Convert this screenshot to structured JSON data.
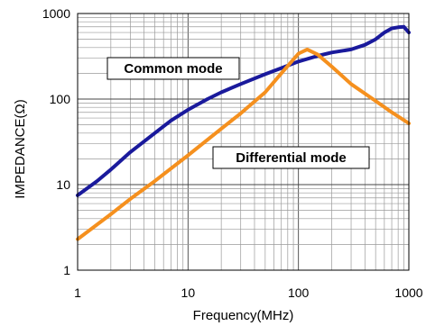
{
  "chart_data": {
    "type": "line",
    "title": "",
    "xlabel": "Frequency(MHz)",
    "ylabel": "IMPEDANCE(Ω)",
    "xscale": "log",
    "yscale": "log",
    "xlim": [
      1,
      1000
    ],
    "ylim": [
      1,
      1000
    ],
    "grid": true,
    "x_ticks": [
      "1",
      "10",
      "100",
      "1000"
    ],
    "y_ticks": [
      "1",
      "10",
      "100",
      "1000"
    ],
    "series": [
      {
        "name": "Common mode",
        "color": "#1a1a9c",
        "x": [
          1,
          1.5,
          2,
          3,
          5,
          7,
          10,
          15,
          20,
          30,
          50,
          70,
          100,
          150,
          200,
          300,
          400,
          500,
          600,
          700,
          800,
          900,
          1000
        ],
        "y": [
          7.5,
          11,
          15,
          24,
          40,
          56,
          75,
          100,
          120,
          150,
          195,
          230,
          275,
          320,
          350,
          380,
          430,
          500,
          600,
          670,
          690,
          700,
          600
        ]
      },
      {
        "name": "Differential mode",
        "color": "#f5901e",
        "x": [
          1,
          2,
          3,
          5,
          10,
          20,
          30,
          50,
          70,
          100,
          120,
          150,
          200,
          300,
          500,
          700,
          1000
        ],
        "y": [
          2.3,
          4.5,
          6.8,
          11,
          22,
          45,
          68,
          120,
          200,
          340,
          380,
          330,
          240,
          150,
          95,
          70,
          52
        ]
      }
    ]
  }
}
